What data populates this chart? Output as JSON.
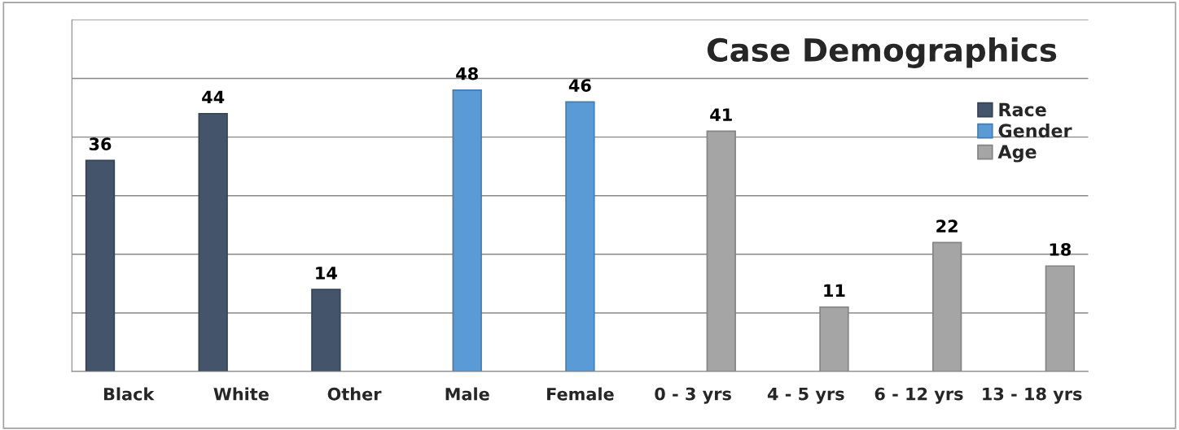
{
  "chart_data": {
    "type": "bar",
    "title": "Case Demographics",
    "categories": [
      "Black",
      "White",
      "Other",
      "Male",
      "Female",
      "0 - 3 yrs",
      "4 - 5 yrs",
      "6 - 12 yrs",
      "13 - 18 yrs"
    ],
    "series": [
      {
        "name": "Race",
        "color": "#44546a",
        "values": [
          36,
          44,
          14,
          null,
          null,
          null,
          null,
          null,
          null
        ]
      },
      {
        "name": "Gender",
        "color": "#5b9bd5",
        "values": [
          null,
          null,
          null,
          48,
          46,
          null,
          null,
          null,
          null
        ]
      },
      {
        "name": "Age",
        "color": "#a5a5a5",
        "values": [
          null,
          null,
          null,
          null,
          null,
          41,
          11,
          22,
          18
        ]
      }
    ],
    "ylim": [
      0,
      60
    ],
    "grid": "y",
    "legend": "right",
    "tick_labels": "x",
    "data_labels": true
  }
}
